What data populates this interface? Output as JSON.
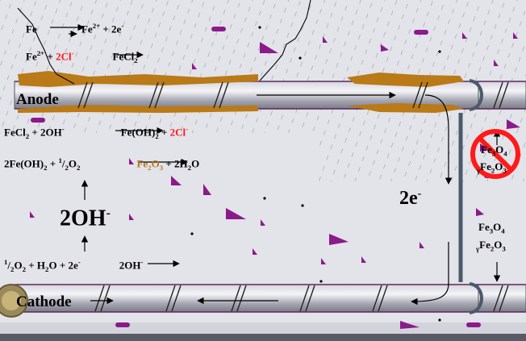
{
  "labels": {
    "anode": "Anode",
    "cathode": "Cathode",
    "electrons": "2e",
    "electrons_sup": "-",
    "hydroxide": "2OH",
    "hydroxide_sup": "-"
  },
  "reactions": {
    "r1": {
      "left": "Fe",
      "right_a": "Fe",
      "right_sup": "2+",
      "right_b": " + 2e",
      "right_sup2": "-"
    },
    "r2": {
      "a": "Fe",
      "a_sup": "2+",
      "b": " + ",
      "c": "2Cl",
      "c_sup": "-",
      "d": "FeCl",
      "d_sub": "2"
    },
    "r3": {
      "a": "FeCl",
      "a_sub": "2",
      "b": " + 2OH",
      "b_sup": "-",
      "c": "Fe(OH)",
      "c_sub": "2",
      "d": " + ",
      "e": "2Cl",
      "e_sup": "-"
    },
    "r4": {
      "a": "2Fe(OH)",
      "a_sub": "2",
      "b": " + ",
      "b_sup": "1",
      "b_slash": "/",
      "b_sub": "2",
      "b2": "O",
      "b2_sub": "2",
      "c": "Fe",
      "c_sub": "2",
      "c2": "O",
      "c2_sub": "3",
      "d": " + 2H",
      "d_sub": "2",
      "d2": "O"
    },
    "r5": {
      "a_sup": "1",
      "a_slash": "/",
      "a_sub": "2",
      "a": "O",
      "a_sub2": "2",
      "b": " + H",
      "b_sub": "2",
      "b2": "O + 2e",
      "b_sup": "-",
      "c": "2OH",
      "c_sup": "-"
    }
  },
  "oxides": {
    "blocked_a": "Fe",
    "blocked_a_sub": "3",
    "blocked_b": "O",
    "blocked_b_sub": "4",
    "blocked_c_pre": "γ",
    "blocked_c": "Fe",
    "blocked_c_sub": "2",
    "blocked_d": "O",
    "blocked_d_sub": "3",
    "fe3o4_a": "Fe",
    "fe3o4_sub": "3",
    "fe3o4_b": "O",
    "fe3o4_sub2": "4",
    "gfe2o3_pre": "γ",
    "gfe2o3_a": "Fe",
    "gfe2o3_sub": "2",
    "gfe2o3_b": "O",
    "gfe2o3_sub2": "3"
  },
  "colors": {
    "pipe": "#a8a8b4",
    "rust": "#b97a17",
    "purple": "#8b1a8b",
    "background": "#e3e3ea",
    "no_sign": "#ff1a1a"
  }
}
